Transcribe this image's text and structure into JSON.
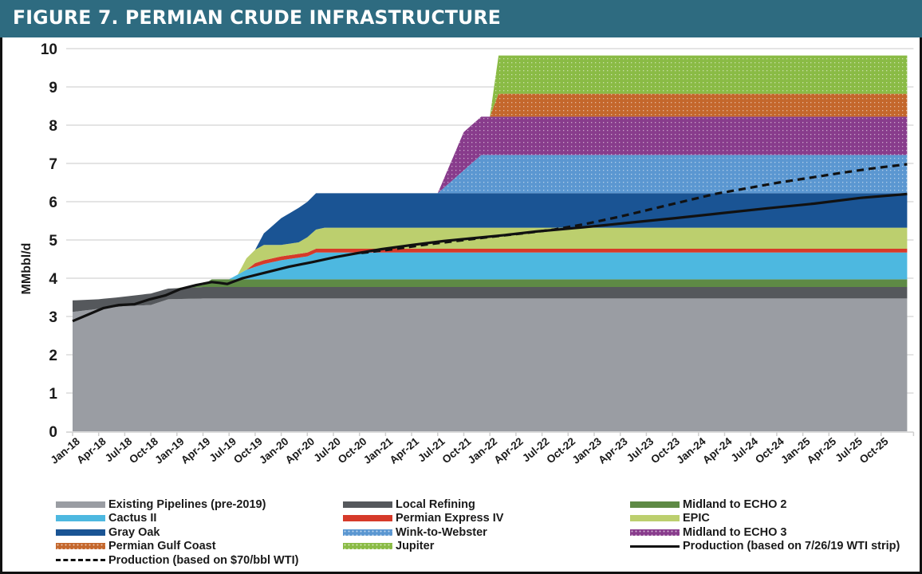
{
  "figure": {
    "title": "FIGURE 7. PERMIAN CRUDE INFRASTRUCTURE"
  },
  "chart_data": {
    "type": "area",
    "title": "FIGURE 7. PERMIAN CRUDE INFRASTRUCTURE",
    "xlabel": "",
    "ylabel": "MMbbl/d",
    "ylim": [
      0,
      10
    ],
    "yticks": [
      0,
      1,
      2,
      3,
      4,
      5,
      6,
      7,
      8,
      9,
      10
    ],
    "grid": true,
    "legend_position": "bottom",
    "x_range_months": [
      0,
      96
    ],
    "x_tick_labels": [
      "Jan-18",
      "Apr-18",
      "Jul-18",
      "Oct-18",
      "Jan-19",
      "Apr-19",
      "Jul-19",
      "Oct-19",
      "Jan-20",
      "Apr-20",
      "Jul-20",
      "Oct-20",
      "Jan-21",
      "Apr-21",
      "Jul-21",
      "Oct-21",
      "Jan-22",
      "Apr-22",
      "Jul-22",
      "Oct-22",
      "Jan-23",
      "Apr-23",
      "Jul-23",
      "Oct-23",
      "Jan-24",
      "Apr-24",
      "Jul-24",
      "Oct-24",
      "Jan-25",
      "Apr-25",
      "Jul-25",
      "Oct-25"
    ],
    "x_unit_note": "x values are months since Jan-18",
    "stacked_series": [
      {
        "name": "Existing Pipelines (pre-2019)",
        "color": "#9a9da3",
        "pattern": "solid",
        "points": [
          [
            0,
            3.12
          ],
          [
            3,
            3.2
          ],
          [
            6,
            3.27
          ],
          [
            9,
            3.3
          ],
          [
            11,
            3.45
          ],
          [
            15,
            3.47
          ],
          [
            96,
            3.47
          ]
        ]
      },
      {
        "name": "Local Refining",
        "color": "#55585c",
        "pattern": "solid",
        "points": [
          [
            0,
            0.3
          ],
          [
            3,
            0.25
          ],
          [
            6,
            0.25
          ],
          [
            9,
            0.3
          ],
          [
            11,
            0.28
          ],
          [
            15,
            0.3
          ],
          [
            96,
            0.3
          ]
        ]
      },
      {
        "name": "Midland to ECHO 2",
        "color": "#5e8a45",
        "pattern": "solid",
        "points": [
          [
            0,
            0
          ],
          [
            12,
            0
          ],
          [
            15,
            0.05
          ],
          [
            16,
            0.2
          ],
          [
            96,
            0.2
          ]
        ]
      },
      {
        "name": "Cactus II",
        "color": "#4db8e0",
        "pattern": "solid",
        "points": [
          [
            0,
            0
          ],
          [
            18,
            0
          ],
          [
            20,
            0.25
          ],
          [
            22,
            0.4
          ],
          [
            24,
            0.5
          ],
          [
            27,
            0.6
          ],
          [
            28,
            0.7
          ],
          [
            96,
            0.7
          ]
        ]
      },
      {
        "name": "Permian Express IV",
        "color": "#d63a2a",
        "pattern": "solid",
        "points": [
          [
            0,
            0
          ],
          [
            20,
            0
          ],
          [
            21,
            0.1
          ],
          [
            96,
            0.1
          ]
        ]
      },
      {
        "name": "EPIC",
        "color": "#bccf6e",
        "pattern": "solid",
        "points": [
          [
            0,
            0
          ],
          [
            19,
            0
          ],
          [
            20,
            0.3
          ],
          [
            22,
            0.4
          ],
          [
            24,
            0.3
          ],
          [
            26,
            0.3
          ],
          [
            28,
            0.5
          ],
          [
            29,
            0.55
          ],
          [
            96,
            0.55
          ]
        ]
      },
      {
        "name": "Gray Oak",
        "color": "#1a5494",
        "pattern": "solid",
        "points": [
          [
            0,
            0
          ],
          [
            21,
            0
          ],
          [
            22,
            0.3
          ],
          [
            24,
            0.7
          ],
          [
            25,
            0.8
          ],
          [
            26,
            0.9
          ],
          [
            28,
            0.95
          ],
          [
            29,
            0.9
          ],
          [
            96,
            0.9
          ]
        ]
      },
      {
        "name": "Wink-to-Webster",
        "color": "#5b97d1",
        "pattern": "dotted",
        "points": [
          [
            0,
            0
          ],
          [
            42,
            0
          ],
          [
            47,
            1.0
          ],
          [
            96,
            1.0
          ]
        ]
      },
      {
        "name": "Midland to ECHO 3",
        "color": "#883c8c",
        "pattern": "dotted",
        "points": [
          [
            0,
            0
          ],
          [
            42,
            0
          ],
          [
            45,
            1.0
          ],
          [
            47,
            1.0
          ],
          [
            96,
            1.0
          ]
        ]
      },
      {
        "name": "Permian Gulf Coast",
        "color": "#c4672c",
        "pattern": "dotted",
        "points": [
          [
            0,
            0
          ],
          [
            48,
            0
          ],
          [
            49,
            0.6
          ],
          [
            96,
            0.6
          ]
        ]
      },
      {
        "name": "Jupiter",
        "color": "#8abb45",
        "pattern": "dotted",
        "points": [
          [
            0,
            0
          ],
          [
            48,
            0
          ],
          [
            49,
            1.0
          ],
          [
            96,
            1.0
          ]
        ]
      }
    ],
    "line_series": [
      {
        "name": "Production (based on 7/26/19 WTI strip)",
        "color": "#111111",
        "style": "solid",
        "points": [
          [
            0,
            2.88
          ],
          [
            2,
            3.05
          ],
          [
            4,
            3.22
          ],
          [
            6,
            3.3
          ],
          [
            8,
            3.32
          ],
          [
            10,
            3.45
          ],
          [
            12,
            3.55
          ],
          [
            14,
            3.72
          ],
          [
            16,
            3.82
          ],
          [
            18,
            3.9
          ],
          [
            19,
            3.88
          ],
          [
            20,
            3.85
          ],
          [
            22,
            4.0
          ],
          [
            25,
            4.15
          ],
          [
            28,
            4.3
          ],
          [
            31,
            4.42
          ],
          [
            34,
            4.55
          ],
          [
            37,
            4.66
          ],
          [
            40,
            4.76
          ],
          [
            44,
            4.87
          ],
          [
            48,
            4.97
          ],
          [
            52,
            5.05
          ],
          [
            56,
            5.13
          ],
          [
            60,
            5.22
          ],
          [
            66,
            5.33
          ],
          [
            72,
            5.45
          ],
          [
            78,
            5.57
          ],
          [
            84,
            5.7
          ],
          [
            90,
            5.83
          ],
          [
            96,
            5.95
          ],
          [
            102,
            6.1
          ],
          [
            108,
            6.2
          ]
        ]
      },
      {
        "name": "Production (based on $70/bbl WTI)",
        "color": "#111111",
        "style": "dashed",
        "points": [
          [
            36,
            4.66
          ],
          [
            40,
            4.76
          ],
          [
            44,
            4.88
          ],
          [
            48,
            4.98
          ],
          [
            52,
            5.08
          ],
          [
            56,
            5.17
          ],
          [
            60,
            5.27
          ],
          [
            64,
            5.42
          ],
          [
            68,
            5.6
          ],
          [
            72,
            5.8
          ],
          [
            76,
            6.0
          ],
          [
            80,
            6.2
          ],
          [
            84,
            6.35
          ],
          [
            88,
            6.5
          ],
          [
            92,
            6.63
          ],
          [
            96,
            6.76
          ],
          [
            100,
            6.88
          ],
          [
            104,
            6.98
          ]
        ]
      }
    ]
  },
  "legend": {
    "items": [
      {
        "label": "Existing Pipelines (pre-2019)",
        "color": "#9a9da3",
        "kind": "solid"
      },
      {
        "label": "Local Refining",
        "color": "#55585c",
        "kind": "solid"
      },
      {
        "label": "Midland to ECHO 2",
        "color": "#5e8a45",
        "kind": "solid"
      },
      {
        "label": "Cactus II",
        "color": "#4db8e0",
        "kind": "solid"
      },
      {
        "label": "Permian Express IV",
        "color": "#d63a2a",
        "kind": "solid"
      },
      {
        "label": "EPIC",
        "color": "#bccf6e",
        "kind": "solid"
      },
      {
        "label": "Gray Oak",
        "color": "#1a5494",
        "kind": "solid"
      },
      {
        "label": "Wink-to-Webster",
        "color": "#5b97d1",
        "kind": "dotted"
      },
      {
        "label": "Midland to ECHO 3",
        "color": "#883c8c",
        "kind": "dotted"
      },
      {
        "label": "Permian Gulf Coast",
        "color": "#c4672c",
        "kind": "dotted"
      },
      {
        "label": "Jupiter",
        "color": "#8abb45",
        "kind": "dotted"
      },
      {
        "label": "Production (based on 7/26/19 WTI strip)",
        "color": "#111111",
        "kind": "line"
      },
      {
        "label": "Production (based on $70/bbl WTI)",
        "color": "#111111",
        "kind": "dash"
      }
    ]
  },
  "colors": {
    "title_bar": "#2e6b80",
    "grid": "#dcdcdc"
  }
}
